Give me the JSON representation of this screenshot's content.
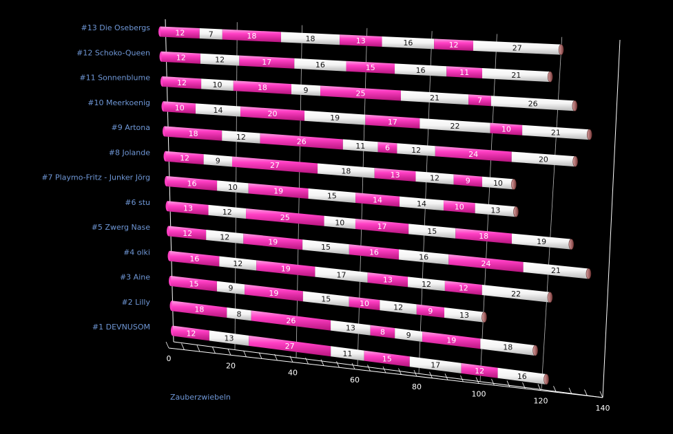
{
  "chart_data": {
    "type": "bar",
    "orientation": "horizontal",
    "stacked": true,
    "style": "3d-cylinder",
    "xlabel": "Zauberzwiebeln",
    "xlim": [
      0,
      140
    ],
    "x_ticks": [
      0,
      20,
      40,
      60,
      80,
      100,
      120,
      140
    ],
    "grid": true,
    "colors": [
      "#ff3fc4",
      "#ffffff"
    ],
    "categories": [
      "#13 Die Osebergs",
      "#12 Schoko-Queen",
      "#11 Sonnenblume",
      "#10 Meerkoenig",
      "#9 Artona",
      "#8 Jolande",
      "#7 Playmo-Fritz - Junker Jörg",
      "#6 stu",
      "#5 Zwerg Nase",
      "#4 olki",
      "#3 Aine",
      "#2 Lilly",
      "#1 DEVNUSOM"
    ],
    "segments": [
      [
        12,
        7,
        18,
        18,
        13,
        16,
        12,
        27
      ],
      [
        12,
        12,
        17,
        16,
        15,
        16,
        11,
        21
      ],
      [
        12,
        10,
        18,
        9,
        25,
        21,
        7,
        26
      ],
      [
        10,
        14,
        20,
        19,
        17,
        22,
        10,
        21
      ],
      [
        18,
        12,
        26,
        11,
        6,
        12,
        24,
        20
      ],
      [
        12,
        9,
        27,
        18,
        13,
        12,
        9,
        10
      ],
      [
        16,
        10,
        19,
        15,
        14,
        14,
        10,
        13
      ],
      [
        13,
        12,
        25,
        10,
        17,
        15,
        18,
        19
      ],
      [
        12,
        12,
        19,
        15,
        16,
        16,
        24,
        21
      ],
      [
        16,
        12,
        19,
        17,
        13,
        12,
        12,
        22
      ],
      [
        15,
        9,
        19,
        15,
        10,
        12,
        9,
        13
      ],
      [
        18,
        8,
        26,
        13,
        8,
        9,
        19,
        18
      ],
      [
        12,
        13,
        27,
        11,
        15,
        17,
        12,
        16
      ]
    ]
  }
}
